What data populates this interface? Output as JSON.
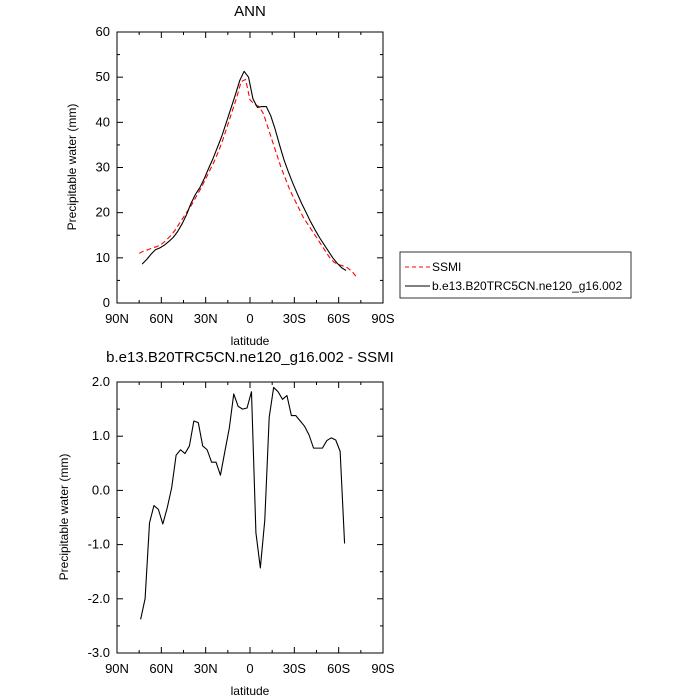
{
  "chart_data": [
    {
      "type": "line",
      "title": "ANN",
      "xlabel": "latitude",
      "ylabel": "Precipitable water (mm)",
      "xlim": [
        90,
        -90
      ],
      "ylim": [
        0,
        60
      ],
      "x_tick_values": [
        90,
        60,
        30,
        0,
        -30,
        -60,
        -90
      ],
      "x_tick_labels": [
        "90N",
        "60N",
        "30N",
        "0",
        "30S",
        "60S",
        "90S"
      ],
      "y_tick_values": [
        0,
        10,
        20,
        30,
        40,
        50,
        60
      ],
      "y_tick_labels": [
        "0",
        "10",
        "20",
        "30",
        "40",
        "50",
        "60"
      ],
      "grid": false,
      "legend_position": "right, outside plot",
      "series": [
        {
          "name": "SSMI",
          "color": "#ff0000",
          "dash": "dashed",
          "x": [
            75,
            72,
            69,
            66,
            63,
            60,
            57,
            54,
            51,
            48,
            45,
            42,
            39,
            36,
            33,
            30,
            27,
            24,
            21,
            18,
            15,
            12,
            9,
            6,
            3,
            0,
            -3,
            -6,
            -9,
            -12,
            -15,
            -18,
            -21,
            -24,
            -27,
            -30,
            -33,
            -36,
            -39,
            -42,
            -45,
            -48,
            -51,
            -54,
            -57,
            -60,
            -63,
            -66,
            -69,
            -72
          ],
          "y": [
            11,
            11.5,
            11.8,
            12.2,
            12.5,
            13,
            13.8,
            14.8,
            16,
            17.5,
            19,
            20.5,
            22,
            23.8,
            25.5,
            27.5,
            29.5,
            31.5,
            33.8,
            36.5,
            39.5,
            42.5,
            45.5,
            49,
            49.5,
            45,
            44,
            43.5,
            42,
            39,
            36,
            33,
            30,
            27.5,
            25,
            23,
            21,
            19,
            17.5,
            16,
            14.5,
            13,
            11.5,
            10,
            9,
            8.5,
            8.2,
            7.8,
            7,
            5.8
          ]
        },
        {
          "name": "b.e13.B20TRC5CN.ne120_g16.002",
          "color": "#000000",
          "dash": "solid",
          "x": [
            73,
            70,
            67,
            64,
            61,
            58,
            55,
            52,
            49,
            46,
            43,
            40,
            37,
            34,
            31,
            28,
            25,
            22,
            19,
            16,
            13,
            10,
            7,
            4,
            1,
            -2,
            -5,
            -8,
            -11,
            -14,
            -17,
            -20,
            -23,
            -26,
            -29,
            -32,
            -35,
            -38,
            -41,
            -44,
            -47,
            -50,
            -53,
            -56,
            -59,
            -62,
            -65
          ],
          "y": [
            8.6,
            9.6,
            10.8,
            11.8,
            12.2,
            12.8,
            13.6,
            14.5,
            15.8,
            17.5,
            19.5,
            22,
            24,
            25.5,
            27.5,
            29.8,
            32,
            34.5,
            37,
            40,
            43,
            46,
            49.2,
            51.3,
            50,
            45.2,
            43.3,
            43.5,
            43.5,
            41.5,
            38.5,
            35,
            31.7,
            29,
            26.5,
            24.2,
            22,
            20,
            18,
            16.2,
            14.5,
            13,
            11.5,
            10,
            8.8,
            7.8,
            7.2
          ]
        }
      ]
    },
    {
      "type": "line",
      "title": "b.e13.B20TRC5CN.ne120_g16.002 - SSMI",
      "xlabel": "latitude",
      "ylabel": "Precipitable water (mm)",
      "xlim": [
        90,
        -90
      ],
      "ylim": [
        -3,
        2
      ],
      "x_tick_values": [
        90,
        60,
        30,
        0,
        -30,
        -60,
        -90
      ],
      "x_tick_labels": [
        "90N",
        "60N",
        "30N",
        "0",
        "30S",
        "60S",
        "90S"
      ],
      "y_tick_values": [
        2,
        1,
        0,
        -1,
        -2,
        -3
      ],
      "y_tick_labels": [
        "2.0",
        "1.0",
        "0.0",
        "-1.0",
        "-2.0",
        "-3.0"
      ],
      "grid": false,
      "series": [
        {
          "color": "#000000",
          "dash": "solid",
          "x": [
            74,
            71,
            68,
            65,
            62,
            59,
            56,
            53,
            50,
            47,
            44,
            41,
            38,
            35,
            32,
            29,
            26,
            23,
            20,
            17,
            14,
            11,
            8,
            5,
            2,
            -1,
            -4,
            -7,
            -10,
            -13,
            -16,
            -19,
            -22,
            -25,
            -28,
            -31,
            -34,
            -37,
            -40,
            -43,
            -46,
            -49,
            -52,
            -55,
            -58,
            -61,
            -64
          ],
          "y": [
            -2.38,
            -2.0,
            -0.6,
            -0.28,
            -0.35,
            -0.62,
            -0.32,
            0.05,
            0.65,
            0.75,
            0.68,
            0.82,
            1.28,
            1.25,
            0.82,
            0.75,
            0.52,
            0.52,
            0.28,
            0.72,
            1.15,
            1.78,
            1.55,
            1.5,
            1.52,
            1.82,
            -0.78,
            -1.43,
            -0.55,
            1.35,
            1.9,
            1.82,
            1.68,
            1.75,
            1.38,
            1.38,
            1.28,
            1.18,
            1.02,
            0.78,
            0.78,
            0.78,
            0.92,
            0.97,
            0.93,
            0.72,
            -0.98
          ]
        }
      ]
    }
  ]
}
